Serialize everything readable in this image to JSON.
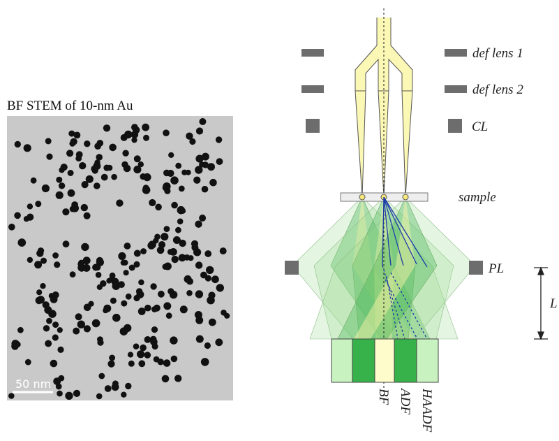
{
  "left_panel": {
    "title": "BF STEM of 10-nm Au",
    "scale_bar": "50 nm"
  },
  "diagram": {
    "lens_labels": [
      "def lens 1",
      "def lens 2",
      "CL"
    ],
    "sample": "sample",
    "projector": "PL",
    "length": "L",
    "detectors": [
      "BF",
      "ADF",
      "HAADF"
    ]
  }
}
